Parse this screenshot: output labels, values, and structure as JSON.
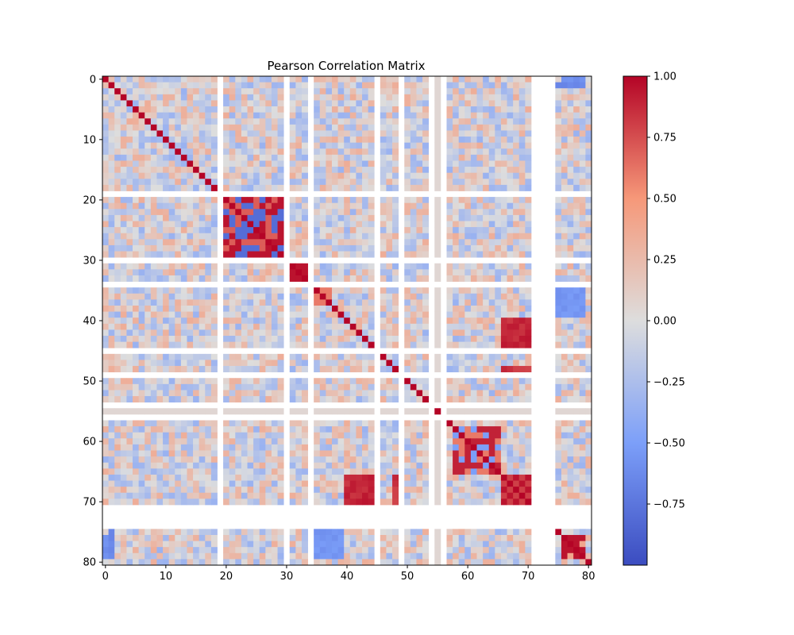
{
  "chart_data": {
    "type": "heatmap",
    "title": "Pearson Correlation Matrix",
    "xlabel": "",
    "ylabel": "",
    "size": 81,
    "xlim": [
      0,
      80
    ],
    "ylim": [
      0,
      80
    ],
    "x_ticks": [
      0,
      10,
      20,
      30,
      40,
      50,
      60,
      70,
      80
    ],
    "y_ticks": [
      0,
      10,
      20,
      30,
      40,
      50,
      60,
      70,
      80
    ],
    "colormap": "coolwarm",
    "colorbar": {
      "vmin": -1.0,
      "vmax": 1.0,
      "ticks": [
        "−0.75",
        "−0.50",
        "−0.25",
        "0.00",
        "0.25",
        "0.50",
        "0.75",
        "1.00"
      ],
      "tick_values": [
        -0.75,
        -0.5,
        -0.25,
        0.0,
        0.25,
        0.5,
        0.75,
        1.0
      ]
    },
    "nan_indices": [
      19,
      30,
      34,
      45,
      49,
      54,
      56,
      71,
      72,
      73,
      74
    ],
    "constant_indices": [
      55
    ],
    "diagonal_value": 1.0,
    "blocks": [
      {
        "rows": [
          20,
          29
        ],
        "cols": [
          20,
          29
        ],
        "pattern": "mixed",
        "values": [
          0.95,
          0.7,
          -0.8
        ]
      },
      {
        "rows": [
          31,
          33
        ],
        "cols": [
          31,
          33
        ],
        "pattern": "high",
        "values": [
          0.95
        ]
      },
      {
        "rows": [
          35,
          37
        ],
        "cols": [
          35,
          37
        ],
        "pattern": "high",
        "values": [
          0.95,
          0.6
        ]
      },
      {
        "rows": [
          58,
          65
        ],
        "cols": [
          58,
          65
        ],
        "pattern": "mixed",
        "values": [
          0.9,
          0.6,
          -0.5
        ]
      },
      {
        "rows": [
          66,
          70
        ],
        "cols": [
          66,
          70
        ],
        "pattern": "checker",
        "values": [
          0.95,
          0.8
        ]
      },
      {
        "rows": [
          76,
          79
        ],
        "cols": [
          76,
          79
        ],
        "pattern": "high",
        "values": [
          0.95,
          0.4
        ]
      },
      {
        "rows": [
          40,
          44
        ],
        "cols": [
          66,
          70
        ],
        "pattern": "band",
        "values": [
          0.95
        ]
      },
      {
        "rows": [
          48,
          48
        ],
        "cols": [
          66,
          70
        ],
        "pattern": "band",
        "values": [
          0.9
        ]
      },
      {
        "rows": [
          35,
          39
        ],
        "cols": [
          75,
          79
        ],
        "pattern": "band",
        "values": [
          -0.6
        ]
      },
      {
        "rows": [
          0,
          1
        ],
        "cols": [
          76,
          79
        ],
        "pattern": "band",
        "values": [
          -0.65
        ]
      },
      {
        "rows": [
          75,
          79
        ],
        "cols": [
          1,
          1
        ],
        "pattern": "band",
        "values": [
          -0.7
        ]
      }
    ]
  }
}
